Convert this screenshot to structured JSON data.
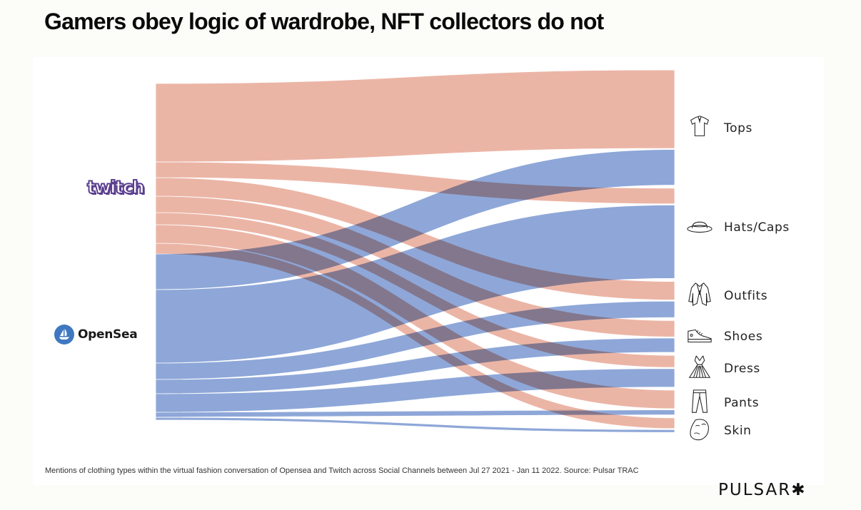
{
  "title": "Gamers obey logic of wardrobe, NFT collectors do not",
  "footnote": "Mentions of clothing types within the virtual fashion conversation of Opensea and Twitch across Social Channels between Jul 27 2021 - Jan 11 2022. Source: Pulsar TRAC",
  "brand": {
    "name": "PULSAR",
    "mark": "✱"
  },
  "sources": {
    "twitch": {
      "label": "twitch",
      "logo_color": "#5b3f8f"
    },
    "opensea": {
      "label": "OpenSea",
      "logo_color": "#3f78c0"
    }
  },
  "categories": [
    {
      "key": "tops",
      "label": "Tops",
      "icon": "polo-shirt-icon"
    },
    {
      "key": "hats",
      "label": "Hats/Caps",
      "icon": "hat-icon"
    },
    {
      "key": "outfits",
      "label": "Outfits",
      "icon": "jacket-icon"
    },
    {
      "key": "shoes",
      "label": "Shoes",
      "icon": "sneaker-icon"
    },
    {
      "key": "dress",
      "label": "Dress",
      "icon": "dress-icon"
    },
    {
      "key": "pants",
      "label": "Pants",
      "icon": "pants-icon"
    },
    {
      "key": "skin",
      "label": "Skin",
      "icon": "face-mask-icon"
    }
  ],
  "chart_data": {
    "type": "sankey",
    "title": "Gamers obey logic of wardrobe, NFT collectors do not",
    "units": "relative mention volume",
    "colors": {
      "Twitch": "#ebb5a6",
      "OpenSea": "#8ea7d8"
    },
    "sources": [
      "Twitch",
      "OpenSea"
    ],
    "targets": [
      "Tops",
      "Hats/Caps",
      "Outfits",
      "Shoes",
      "Dress",
      "Pants",
      "Skin"
    ],
    "links": [
      {
        "source": "Twitch",
        "target": "Tops",
        "value": 110
      },
      {
        "source": "Twitch",
        "target": "Hats/Caps",
        "value": 22
      },
      {
        "source": "Twitch",
        "target": "Outfits",
        "value": 26
      },
      {
        "source": "Twitch",
        "target": "Shoes",
        "value": 23
      },
      {
        "source": "Twitch",
        "target": "Dress",
        "value": 17
      },
      {
        "source": "Twitch",
        "target": "Pants",
        "value": 26
      },
      {
        "source": "Twitch",
        "target": "Skin",
        "value": 15
      },
      {
        "source": "OpenSea",
        "target": "Tops",
        "value": 50
      },
      {
        "source": "OpenSea",
        "target": "Hats/Caps",
        "value": 103
      },
      {
        "source": "OpenSea",
        "target": "Outfits",
        "value": 23
      },
      {
        "source": "OpenSea",
        "target": "Shoes",
        "value": 20
      },
      {
        "source": "OpenSea",
        "target": "Dress",
        "value": 26
      },
      {
        "source": "OpenSea",
        "target": "Pants",
        "value": 7
      },
      {
        "source": "OpenSea",
        "target": "Skin",
        "value": 4
      }
    ]
  }
}
